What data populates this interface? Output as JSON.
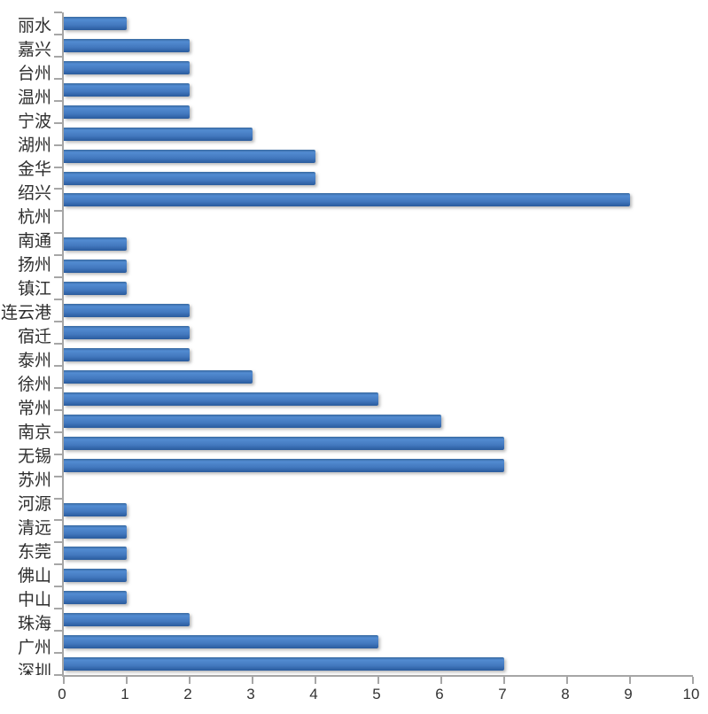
{
  "chart_data": {
    "type": "bar",
    "orientation": "horizontal",
    "title": "",
    "xlabel": "",
    "ylabel": "",
    "xlim": [
      0,
      10
    ],
    "x_ticks": [
      "0",
      "1",
      "2",
      "3",
      "4",
      "5",
      "6",
      "7",
      "8",
      "9",
      "10"
    ],
    "grid": false,
    "legend": null,
    "bar_color": "#4379BF",
    "bar_gradient": [
      "#36689F",
      "#528BD1",
      "#4379BF",
      "#2A5B9D"
    ],
    "axis_color": "#A6A6A6",
    "text_color": "#2E2E2E",
    "categories": [
      "丽水",
      "嘉兴",
      "台州",
      "温州",
      "宁波",
      "湖州",
      "金华",
      "绍兴",
      "杭州",
      "",
      "南通",
      "扬州",
      "镇江",
      "连云港",
      "宿迁",
      "泰州",
      "徐州",
      "常州",
      "南京",
      "无锡",
      "苏州",
      "",
      "河源",
      "清远",
      "东莞",
      "佛山",
      "中山",
      "珠海",
      "广州",
      "深圳"
    ],
    "values": [
      1,
      2,
      2,
      2,
      2,
      3,
      4,
      4,
      9,
      null,
      1,
      1,
      1,
      2,
      2,
      2,
      3,
      5,
      6,
      7,
      7,
      null,
      1,
      1,
      1,
      1,
      1,
      2,
      5,
      7
    ]
  }
}
